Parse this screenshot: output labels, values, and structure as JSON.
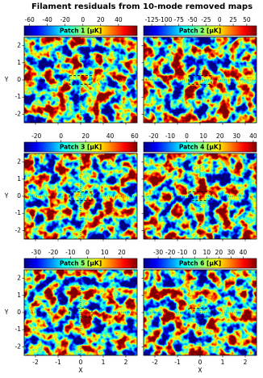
{
  "title": "Filament residuals from 10-mode removed maps",
  "axes": {
    "xlabel": "X",
    "ylabel": "Y",
    "xlim": [
      -2.5,
      2.5
    ],
    "ylim": [
      -2.5,
      2.5
    ],
    "xticks": [
      -2,
      -1,
      0,
      1,
      2
    ],
    "yticks": [
      -2,
      -1,
      0,
      1,
      2
    ]
  },
  "chart_data": [
    {
      "type": "heatmap",
      "label": "Patch 1 [μK]",
      "clim": [
        -66,
        61
      ],
      "cticks": [
        -60,
        -40,
        -20,
        0,
        20,
        40
      ]
    },
    {
      "type": "heatmap",
      "label": "Patch 2 [μK]",
      "clim": [
        -140,
        68
      ],
      "cticks": [
        -125,
        -100,
        -75,
        -50,
        -25,
        0,
        25,
        50
      ]
    },
    {
      "type": "heatmap",
      "label": "Patch 3 [μK]",
      "clim": [
        -30,
        62
      ],
      "cticks": [
        -20,
        0,
        20,
        40,
        60
      ]
    },
    {
      "type": "heatmap",
      "label": "Patch 4 [μK]",
      "clim": [
        -26,
        42
      ],
      "cticks": [
        -20,
        -10,
        0,
        10,
        20,
        30,
        40
      ]
    },
    {
      "type": "heatmap",
      "label": "Patch 5 [μK]",
      "clim": [
        -37,
        29
      ],
      "cticks": [
        -30,
        -20,
        -10,
        0,
        10,
        20
      ]
    },
    {
      "type": "heatmap",
      "label": "Patch 6 [μK]",
      "clim": [
        -42,
        51
      ],
      "cticks": [
        -30,
        -20,
        -10,
        0,
        10,
        20,
        30,
        40
      ]
    }
  ]
}
